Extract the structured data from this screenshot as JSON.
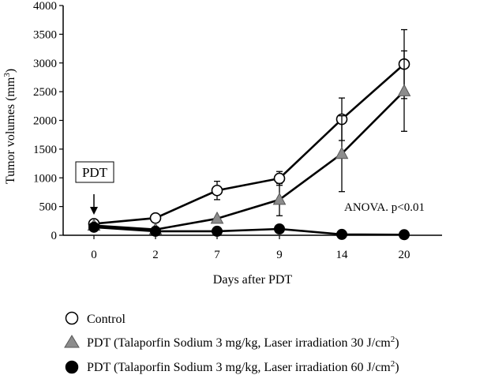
{
  "chart_data": {
    "type": "line",
    "title": "",
    "xlabel": "Days after PDT",
    "ylabel_main": "Tumor volumes (mm",
    "ylabel_sup": "3",
    "ylabel_close": ")",
    "ylim": [
      0,
      4000
    ],
    "yticks": [
      0,
      500,
      1000,
      1500,
      2000,
      2500,
      3000,
      3500,
      4000
    ],
    "categories": [
      "0",
      "2",
      "7",
      "9",
      "14",
      "20"
    ],
    "series": [
      {
        "name": "Control",
        "marker": "circle-open",
        "values": [
          200,
          300,
          780,
          990,
          2020,
          2980
        ],
        "error": [
          0,
          0,
          160,
          120,
          370,
          600
        ]
      },
      {
        "name": "PDT (Talaporfin Sodium 3 mg/kg, Laser irradiation 30 J/cm2)",
        "label_main": "PDT (Talaporfin Sodium 3 mg/kg, Laser irradiation 30 J/cm",
        "label_sup": "2",
        "label_close": ")",
        "marker": "triangle-gray",
        "values": [
          170,
          100,
          290,
          620,
          1420,
          2510
        ],
        "error": [
          0,
          0,
          0,
          280,
          660,
          700
        ]
      },
      {
        "name": "PDT (Talaporfin Sodium 3 mg/kg, Laser irradiation 60 J/cm2)",
        "label_main": "PDT (Talaporfin Sodium 3 mg/kg, Laser irradiation 60 J/cm",
        "label_sup": "2",
        "label_close": ")",
        "marker": "circle-filled",
        "values": [
          140,
          70,
          70,
          110,
          15,
          10
        ],
        "error": [
          0,
          0,
          0,
          0,
          0,
          0
        ]
      }
    ],
    "annotations": {
      "pdt_box": "PDT",
      "anova": "ANOVA. p<0.01"
    },
    "legend_position": "bottom",
    "grid": false
  },
  "colors": {
    "axis": "#000000",
    "line": "#000000",
    "triangle_fill": "#8c8c8c",
    "filled_marker": "#000000",
    "open_marker": "#ffffff"
  }
}
